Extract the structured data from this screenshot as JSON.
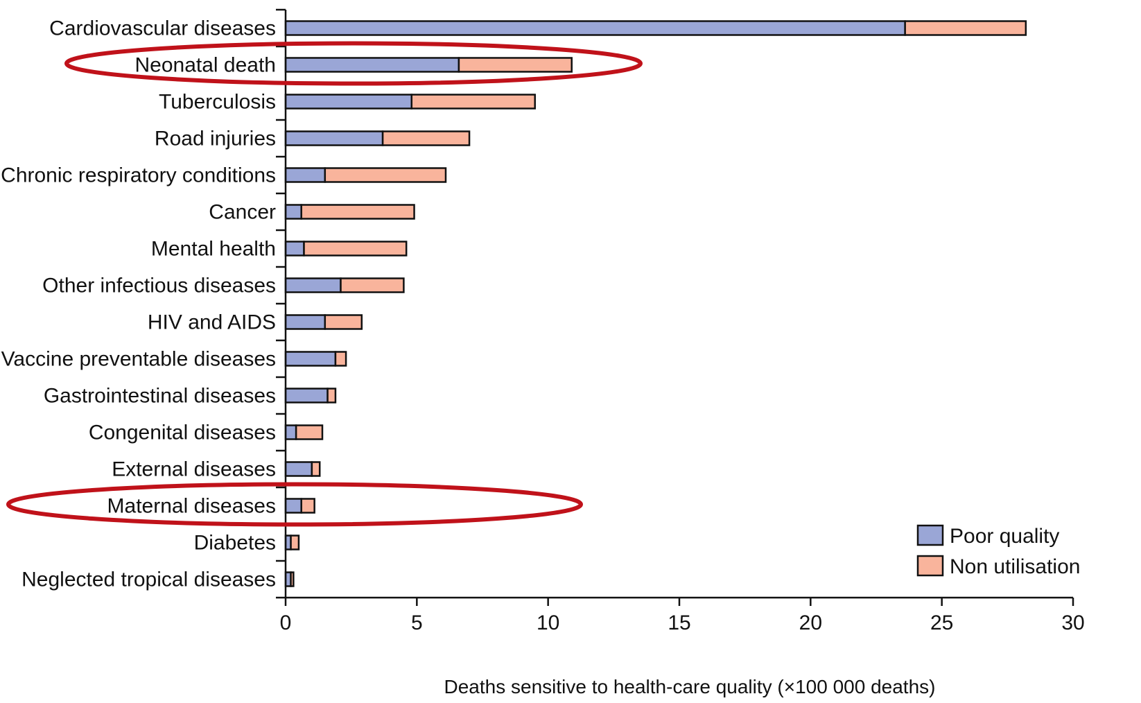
{
  "chart_data": {
    "type": "bar",
    "orientation": "horizontal",
    "stacked": true,
    "categories": [
      "Cardiovascular diseases",
      "Neonatal death",
      "Tuberculosis",
      "Road injuries",
      "Chronic respiratory conditions",
      "Cancer",
      "Mental health",
      "Other infectious diseases",
      "HIV and AIDS",
      "Vaccine preventable diseases",
      "Gastrointestinal diseases",
      "Congenital diseases",
      "External diseases",
      "Maternal diseases",
      "Diabetes",
      "Neglected tropical diseases"
    ],
    "series": [
      {
        "name": "Poor quality",
        "color": "#9aa6d6",
        "values": [
          23.6,
          6.6,
          4.8,
          3.7,
          1.5,
          0.6,
          0.7,
          2.1,
          1.5,
          1.9,
          1.6,
          0.4,
          1.0,
          0.6,
          0.2,
          0.2
        ]
      },
      {
        "name": "Non utilisation",
        "color": "#f9b49c",
        "values": [
          4.6,
          4.3,
          4.7,
          3.3,
          4.6,
          4.3,
          3.9,
          2.4,
          1.4,
          0.4,
          0.3,
          1.0,
          0.3,
          0.5,
          0.3,
          0.1
        ]
      }
    ],
    "xlabel": "Deaths sensitive to health-care quality (×100 000 deaths)",
    "ylabel": "",
    "title": "",
    "xlim": [
      0,
      30
    ],
    "xticks": [
      0,
      5,
      10,
      15,
      20,
      25,
      30
    ],
    "grid": false,
    "legend_position": "bottom-right",
    "highlighted_categories": [
      "Neonatal death",
      "Maternal diseases"
    ],
    "highlight_color": "#c0121a"
  }
}
